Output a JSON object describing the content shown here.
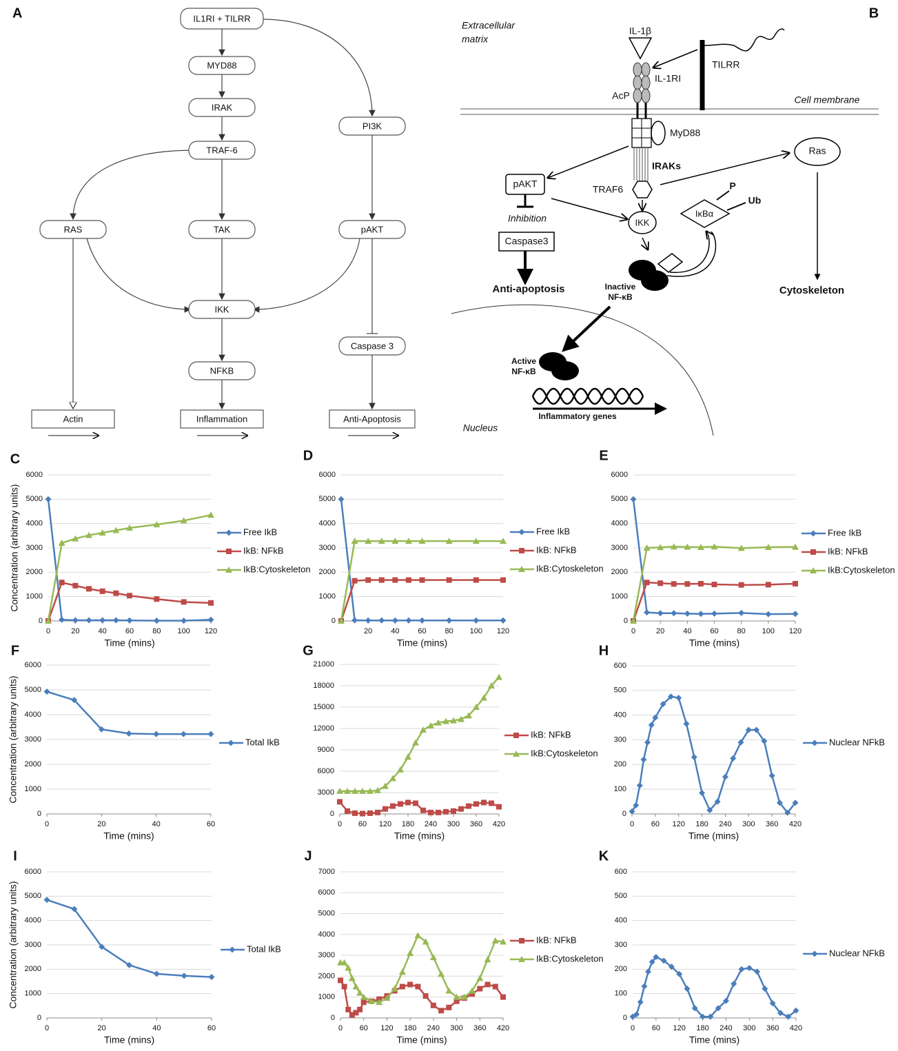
{
  "diagram_a": {
    "label": "A",
    "nodes": [
      "IL1RI + TILRR",
      "MYD88",
      "IRAK",
      "TRAF-6",
      "PI3K",
      "RAS",
      "TAK",
      "pAKT",
      "IKK",
      "Caspase 3",
      "NFKB",
      "Actin",
      "Inflammation",
      "Anti-Apoptosis"
    ]
  },
  "diagram_b": {
    "label": "B",
    "extracellular": [
      "Extracellular",
      "matrix"
    ],
    "il1b": "IL-1β",
    "tilrr": "TILRR",
    "il1ri": "IL-1RI",
    "acp": "AcP",
    "membrane": "Cell membrane",
    "myd88": "MyD88",
    "ras": "Ras",
    "iraks": "IRAKs",
    "pakt": "pAKT",
    "traf6": "TRAF6",
    "p": "P",
    "ub": "Ub",
    "ikba": "IκBα",
    "inhibition": "Inhibition",
    "ikk": "IKK",
    "caspase3": "Caspase3",
    "antiapoptosis": "Anti-apoptosis",
    "inactive": [
      "Inactive",
      "NF-κB"
    ],
    "cytoskeleton": "Cytoskeleton",
    "active": [
      "Active",
      "NF-κB"
    ],
    "genes": "Inflammatory genes",
    "nucleus": "Nucleus"
  },
  "chart_data": [
    {
      "type": "line",
      "label": "C",
      "x_label": "Time (mins)",
      "y_label": "Concentration (arbitrary units)",
      "grid": true,
      "x": [
        0,
        10,
        20,
        30,
        40,
        50,
        60,
        80,
        100,
        120
      ],
      "xlim": [
        0,
        120
      ],
      "xticks": [
        0,
        20,
        40,
        60,
        80,
        100,
        120
      ],
      "ylim": [
        0,
        6000
      ],
      "yticks": [
        0,
        1000,
        2000,
        3000,
        4000,
        5000,
        6000
      ],
      "series": [
        {
          "name": "Free IkB",
          "color": "#4a7ebb",
          "marker": "diamond",
          "values": [
            5000,
            50,
            30,
            30,
            30,
            30,
            20,
            10,
            10,
            50
          ]
        },
        {
          "name": "IkB: NFkB",
          "color": "#be4b48",
          "marker": "square",
          "values": [
            0,
            1580,
            1450,
            1320,
            1220,
            1140,
            1040,
            900,
            780,
            740
          ]
        },
        {
          "name": "IkB:Cytoskeleton",
          "color": "#98b954",
          "marker": "triangle",
          "values": [
            0,
            3200,
            3380,
            3520,
            3620,
            3720,
            3820,
            3960,
            4120,
            4350
          ]
        }
      ]
    },
    {
      "type": "line",
      "label": "D",
      "x_label": "Time (mins)",
      "grid": true,
      "x": [
        0,
        10,
        20,
        30,
        40,
        50,
        60,
        80,
        100,
        120
      ],
      "xlim": [
        0,
        120
      ],
      "xticks": [
        20,
        40,
        60,
        80,
        100,
        120
      ],
      "ylim": [
        0,
        6000
      ],
      "yticks": [
        0,
        1000,
        2000,
        3000,
        4000,
        5000,
        6000
      ],
      "series": [
        {
          "name": "Free IkB",
          "color": "#4a7ebb",
          "marker": "diamond",
          "values": [
            5000,
            30,
            20,
            20,
            20,
            20,
            20,
            20,
            20,
            20
          ]
        },
        {
          "name": "IkB: NFkB",
          "color": "#be4b48",
          "marker": "square",
          "values": [
            0,
            1650,
            1680,
            1680,
            1680,
            1680,
            1680,
            1680,
            1680,
            1680
          ]
        },
        {
          "name": "IkB:Cytoskeleton",
          "color": "#98b954",
          "marker": "triangle",
          "values": [
            0,
            3280,
            3280,
            3280,
            3280,
            3280,
            3280,
            3280,
            3280,
            3280
          ]
        }
      ]
    },
    {
      "type": "line",
      "label": "E",
      "x_label": "Time (mins)",
      "grid": true,
      "x": [
        0,
        10,
        20,
        30,
        40,
        50,
        60,
        80,
        100,
        120
      ],
      "xlim": [
        0,
        120
      ],
      "xticks": [
        0,
        20,
        40,
        60,
        80,
        100,
        120
      ],
      "ylim": [
        0,
        6000
      ],
      "yticks": [
        0,
        1000,
        2000,
        3000,
        4000,
        5000,
        6000
      ],
      "series": [
        {
          "name": "Free IkB",
          "color": "#4a7ebb",
          "marker": "diamond",
          "values": [
            5000,
            350,
            320,
            320,
            300,
            290,
            300,
            330,
            280,
            290
          ]
        },
        {
          "name": "IkB: NFkB",
          "color": "#be4b48",
          "marker": "square",
          "values": [
            0,
            1580,
            1550,
            1520,
            1520,
            1530,
            1500,
            1480,
            1490,
            1530
          ]
        },
        {
          "name": "IkB:Cytoskeleton",
          "color": "#98b954",
          "marker": "triangle",
          "values": [
            0,
            3000,
            3020,
            3050,
            3040,
            3030,
            3050,
            2990,
            3030,
            3040
          ]
        }
      ]
    },
    {
      "type": "line",
      "label": "F",
      "x_label": "Time (mins)",
      "y_label": "Concentration (arbitrary units)",
      "grid": true,
      "x": [
        0,
        10,
        20,
        30,
        40,
        50,
        60
      ],
      "xlim": [
        0,
        60
      ],
      "xticks": [
        0,
        20,
        40,
        60
      ],
      "ylim": [
        0,
        6000
      ],
      "yticks": [
        0,
        1000,
        2000,
        3000,
        4000,
        5000,
        6000
      ],
      "series": [
        {
          "name": "Total IkB",
          "color": "#4a7ebb",
          "marker": "diamond",
          "values": [
            4930,
            4590,
            3410,
            3240,
            3220,
            3220,
            3220
          ]
        }
      ]
    },
    {
      "type": "line",
      "label": "G",
      "x_label": "Time (mins)",
      "grid": true,
      "x": [
        0,
        20,
        40,
        60,
        80,
        100,
        120,
        140,
        160,
        180,
        200,
        220,
        240,
        260,
        280,
        300,
        320,
        340,
        360,
        380,
        400,
        420
      ],
      "xlim": [
        0,
        420
      ],
      "xticks": [
        0,
        60,
        120,
        180,
        240,
        300,
        360,
        420
      ],
      "ylim": [
        0,
        21000
      ],
      "yticks": [
        0,
        3000,
        6000,
        9000,
        12000,
        15000,
        18000,
        21000
      ],
      "series": [
        {
          "name": "IkB: NFkB",
          "color": "#be4b48",
          "marker": "square",
          "values": [
            1700,
            400,
            100,
            50,
            100,
            200,
            700,
            1100,
            1400,
            1600,
            1500,
            500,
            200,
            200,
            300,
            400,
            700,
            1100,
            1400,
            1600,
            1500,
            1000
          ]
        },
        {
          "name": "IkB:Cytoskeleton",
          "color": "#98b954",
          "marker": "triangle",
          "values": [
            3200,
            3200,
            3200,
            3200,
            3200,
            3300,
            3900,
            5000,
            6200,
            8000,
            10000,
            11800,
            12400,
            12800,
            13000,
            13100,
            13300,
            13800,
            15000,
            16300,
            18000,
            19200
          ]
        }
      ]
    },
    {
      "type": "line",
      "label": "H",
      "x_label": "Time (mins)",
      "grid": true,
      "x": [
        0,
        10,
        20,
        30,
        40,
        50,
        60,
        80,
        100,
        120,
        140,
        160,
        180,
        200,
        220,
        240,
        260,
        280,
        300,
        320,
        340,
        360,
        380,
        400,
        420
      ],
      "xlim": [
        0,
        420
      ],
      "xticks": [
        0,
        60,
        120,
        180,
        240,
        300,
        360,
        420
      ],
      "ylim": [
        0,
        600
      ],
      "yticks": [
        0,
        100,
        200,
        300,
        400,
        500,
        600
      ],
      "series": [
        {
          "name": "Nuclear NFkB",
          "color": "#4a7ebb",
          "marker": "diamond",
          "values": [
            10,
            35,
            115,
            220,
            290,
            360,
            390,
            445,
            475,
            470,
            365,
            230,
            85,
            15,
            50,
            150,
            225,
            290,
            340,
            340,
            295,
            155,
            45,
            5,
            45
          ]
        }
      ]
    },
    {
      "type": "line",
      "label": "I",
      "x_label": "Time (mins)",
      "y_label": "Concentration (arbitrary units)",
      "grid": true,
      "x": [
        0,
        10,
        20,
        30,
        40,
        50,
        60
      ],
      "xlim": [
        0,
        60
      ],
      "xticks": [
        0,
        20,
        40,
        60
      ],
      "ylim": [
        0,
        6000
      ],
      "yticks": [
        0,
        1000,
        2000,
        3000,
        4000,
        5000,
        6000
      ],
      "series": [
        {
          "name": "Total IkB",
          "color": "#4a7ebb",
          "marker": "diamond",
          "values": [
            4850,
            4470,
            2920,
            2170,
            1810,
            1730,
            1680
          ]
        }
      ]
    },
    {
      "type": "line",
      "label": "J",
      "x_label": "Time (mins)",
      "grid": true,
      "x": [
        0,
        10,
        20,
        30,
        40,
        50,
        60,
        80,
        100,
        120,
        140,
        160,
        180,
        200,
        220,
        240,
        260,
        280,
        300,
        320,
        340,
        360,
        380,
        400,
        420
      ],
      "xlim": [
        0,
        420
      ],
      "xticks": [
        0,
        60,
        120,
        180,
        240,
        300,
        360,
        420
      ],
      "ylim": [
        0,
        7000
      ],
      "yticks": [
        0,
        1000,
        2000,
        3000,
        4000,
        5000,
        6000,
        7000
      ],
      "series": [
        {
          "name": "IkB: NFkB",
          "color": "#be4b48",
          "marker": "square",
          "values": [
            1800,
            1500,
            400,
            150,
            250,
            400,
            750,
            800,
            900,
            1050,
            1300,
            1500,
            1600,
            1500,
            1050,
            600,
            350,
            500,
            800,
            950,
            1150,
            1400,
            1600,
            1500,
            1000
          ]
        },
        {
          "name": "IkB:Cytoskeleton",
          "color": "#98b954",
          "marker": "triangle",
          "values": [
            2650,
            2650,
            2400,
            1900,
            1500,
            1200,
            1000,
            800,
            750,
            950,
            1400,
            2200,
            3100,
            3950,
            3650,
            2900,
            2100,
            1300,
            1000,
            1000,
            1300,
            1900,
            2800,
            3700,
            3650
          ]
        }
      ]
    },
    {
      "type": "line",
      "label": "K",
      "x_label": "Time (mins)",
      "grid": true,
      "x": [
        0,
        10,
        20,
        30,
        40,
        50,
        60,
        80,
        100,
        120,
        140,
        160,
        180,
        200,
        220,
        240,
        260,
        280,
        300,
        320,
        340,
        360,
        380,
        400,
        420
      ],
      "xlim": [
        0,
        420
      ],
      "xticks": [
        0,
        60,
        120,
        180,
        240,
        300,
        360,
        420
      ],
      "ylim": [
        0,
        600
      ],
      "yticks": [
        0,
        100,
        200,
        300,
        400,
        500,
        600
      ],
      "series": [
        {
          "name": "Nuclear NFkB",
          "color": "#4a7ebb",
          "marker": "diamond",
          "values": [
            5,
            15,
            65,
            130,
            190,
            230,
            250,
            235,
            210,
            180,
            120,
            40,
            5,
            5,
            40,
            70,
            140,
            200,
            205,
            190,
            120,
            60,
            20,
            5,
            30
          ]
        }
      ]
    }
  ]
}
